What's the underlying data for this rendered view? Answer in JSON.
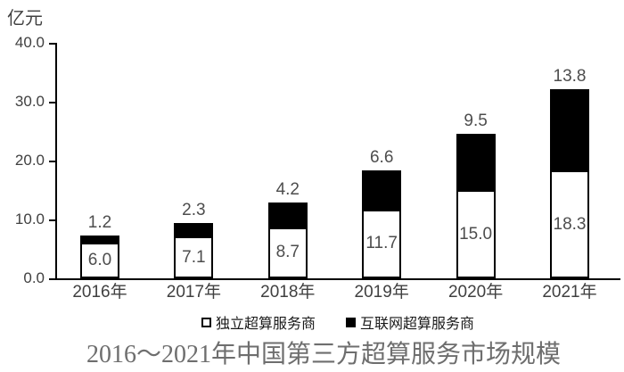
{
  "chart": {
    "unit_label": "亿元",
    "title": "2016～2021年中国第三方超算服务市场规模"
  },
  "chart_data": {
    "type": "bar",
    "stacked": true,
    "title": "2016～2021年中国第三方超算服务市场规模",
    "ylabel": "亿元",
    "xlabel": "",
    "categories": [
      "2016年",
      "2017年",
      "2018年",
      "2019年",
      "2020年",
      "2021年"
    ],
    "series": [
      {
        "name": "独立超算服务商",
        "color": "#ffffff",
        "values": [
          6.0,
          7.1,
          8.7,
          11.7,
          15.0,
          18.3
        ]
      },
      {
        "name": "互联网超算服务商",
        "color": "#000000",
        "values": [
          1.2,
          2.3,
          4.2,
          6.6,
          9.5,
          13.8
        ]
      }
    ],
    "ylim": [
      0,
      40
    ],
    "ytick_labels": [
      "0.0",
      "10.0",
      "20.0",
      "30.0",
      "40.0"
    ],
    "grid": false,
    "legend_position": "bottom",
    "label_placement": {
      "series_0": "inside-center",
      "series_1": "above-bar-top"
    },
    "colors": {
      "axis": "#000000",
      "value_labels": "#4d4d4d",
      "title": "#6e6e6e"
    }
  }
}
